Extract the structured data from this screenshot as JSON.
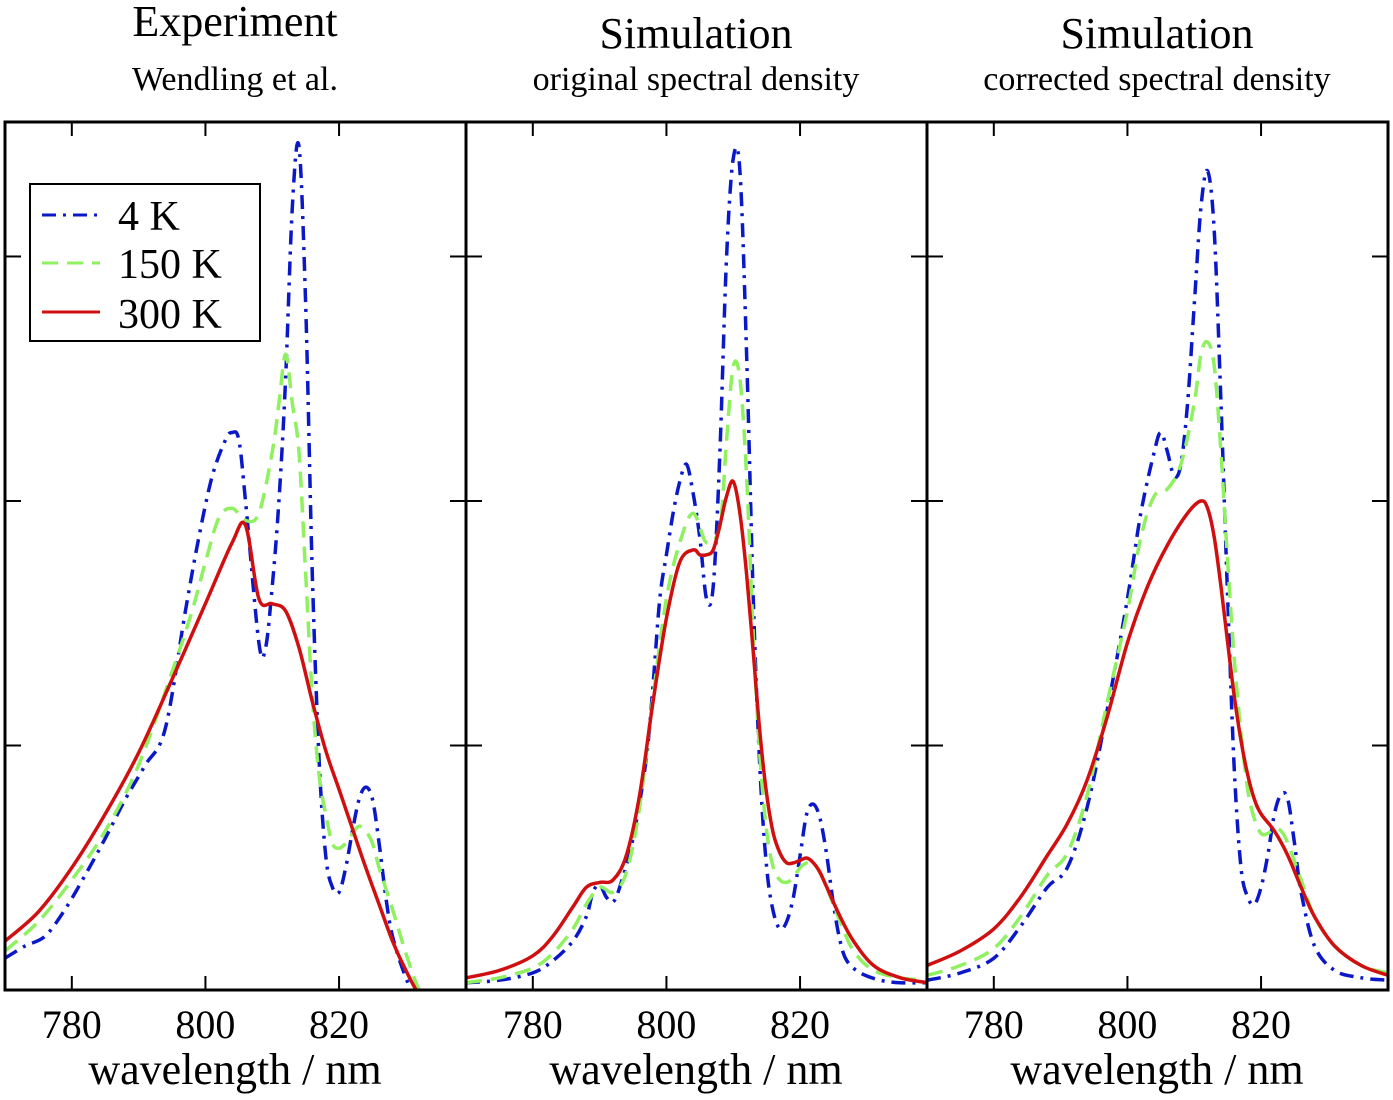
{
  "chart_data": [
    {
      "type": "line",
      "title": "Experiment",
      "subtitle": "Wendling et al.",
      "xlabel": "wavelength / nm",
      "ylabel": "",
      "xlim": [
        770,
        839
      ],
      "ylim": [
        0,
        3.55
      ],
      "xticks": [
        780,
        800,
        820
      ],
      "yticks_unlabeled": [
        1,
        2,
        3
      ],
      "legend": "top-left",
      "series": [
        {
          "name": "4 K",
          "color": "#0a18c8",
          "style": "dashdot",
          "x": [
            770,
            773,
            776,
            779,
            782,
            785,
            788,
            791,
            794,
            797,
            799,
            801,
            803,
            804,
            805,
            806,
            808,
            809,
            810,
            811,
            812,
            813,
            814,
            815,
            816,
            817,
            818,
            819,
            820,
            821,
            822,
            823,
            824,
            825,
            826,
            827,
            828,
            830,
            832,
            834,
            836,
            839
          ],
          "y": [
            0.13,
            0.18,
            0.22,
            0.33,
            0.47,
            0.62,
            0.78,
            0.92,
            1.07,
            1.55,
            1.85,
            2.1,
            2.25,
            2.28,
            2.25,
            2.0,
            1.42,
            1.4,
            1.65,
            2.0,
            2.5,
            3.2,
            3.45,
            2.8,
            1.7,
            0.95,
            0.55,
            0.42,
            0.4,
            0.5,
            0.65,
            0.78,
            0.83,
            0.78,
            0.6,
            0.38,
            0.22,
            0.05,
            -0.06,
            -0.1,
            -0.12,
            -0.14
          ]
        },
        {
          "name": "150 K",
          "color": "#8ff060",
          "style": "dashed",
          "x": [
            770,
            775,
            780,
            785,
            790,
            795,
            798,
            800,
            802,
            804,
            806,
            808,
            810,
            811,
            812,
            813,
            814,
            815,
            816,
            817,
            818,
            819,
            820,
            821,
            822,
            823,
            824,
            825,
            826,
            828,
            830,
            832,
            834,
            836,
            839
          ],
          "y": [
            0.16,
            0.28,
            0.45,
            0.65,
            0.92,
            1.3,
            1.55,
            1.75,
            1.93,
            1.97,
            1.92,
            1.95,
            2.2,
            2.4,
            2.6,
            2.4,
            2.2,
            1.7,
            1.2,
            0.88,
            0.72,
            0.6,
            0.58,
            0.6,
            0.64,
            0.67,
            0.65,
            0.6,
            0.5,
            0.33,
            0.15,
            0.0,
            -0.07,
            -0.11,
            -0.14
          ]
        },
        {
          "name": "300 K",
          "color": "#d01010",
          "style": "solid",
          "x": [
            770,
            775,
            780,
            785,
            790,
            795,
            800,
            804,
            806,
            808,
            810,
            812,
            814,
            816,
            818,
            820,
            822,
            824,
            826,
            828,
            830,
            832,
            834,
            836,
            839
          ],
          "y": [
            0.2,
            0.32,
            0.5,
            0.72,
            0.97,
            1.27,
            1.58,
            1.83,
            1.9,
            1.6,
            1.58,
            1.55,
            1.4,
            1.18,
            0.98,
            0.82,
            0.66,
            0.5,
            0.35,
            0.2,
            0.08,
            -0.02,
            -0.08,
            -0.12,
            -0.15
          ]
        }
      ]
    },
    {
      "type": "line",
      "title": "Simulation",
      "subtitle": "original spectral density",
      "xlabel": "wavelength / nm",
      "ylabel": "",
      "xlim": [
        770,
        839
      ],
      "ylim": [
        0,
        3.55
      ],
      "xticks": [
        780,
        800,
        820
      ],
      "yticks_unlabeled": [
        1,
        2,
        3
      ],
      "series": [
        {
          "name": "4 K",
          "color": "#0a18c8",
          "style": "dashdot",
          "x": [
            770,
            775,
            780,
            783,
            786,
            788,
            789,
            790,
            791,
            792,
            793,
            795,
            797,
            798,
            799,
            800,
            801,
            802,
            803,
            804,
            805,
            806,
            807,
            808,
            809,
            810,
            811,
            812,
            813,
            814,
            815,
            816,
            817,
            818,
            819,
            820,
            821,
            822,
            823,
            824,
            825,
            826,
            827,
            829,
            832,
            835,
            839
          ],
          "y": [
            0.03,
            0.04,
            0.07,
            0.12,
            0.2,
            0.3,
            0.4,
            0.43,
            0.38,
            0.36,
            0.42,
            0.62,
            0.95,
            1.25,
            1.6,
            1.78,
            1.95,
            2.08,
            2.15,
            2.03,
            1.85,
            1.6,
            1.65,
            2.2,
            3.0,
            3.4,
            3.35,
            2.6,
            1.6,
            0.9,
            0.5,
            0.32,
            0.25,
            0.28,
            0.38,
            0.55,
            0.72,
            0.76,
            0.7,
            0.55,
            0.35,
            0.2,
            0.12,
            0.07,
            0.04,
            0.03,
            0.03
          ]
        },
        {
          "name": "150 K",
          "color": "#8ff060",
          "style": "dashed",
          "x": [
            770,
            775,
            780,
            783,
            786,
            788,
            790,
            792,
            794,
            796,
            798,
            800,
            802,
            804,
            806,
            808,
            809,
            810,
            811,
            812,
            813,
            814,
            815,
            816,
            817,
            818,
            819,
            820,
            821,
            822,
            823,
            824,
            826,
            828,
            831,
            835,
            839
          ],
          "y": [
            0.03,
            0.05,
            0.09,
            0.15,
            0.25,
            0.35,
            0.42,
            0.4,
            0.48,
            0.75,
            1.2,
            1.6,
            1.83,
            1.95,
            1.83,
            1.9,
            2.25,
            2.55,
            2.5,
            2.1,
            1.45,
            0.95,
            0.65,
            0.5,
            0.45,
            0.44,
            0.46,
            0.5,
            0.52,
            0.52,
            0.48,
            0.42,
            0.28,
            0.16,
            0.08,
            0.05,
            0.04
          ]
        },
        {
          "name": "300 K",
          "color": "#d01010",
          "style": "solid",
          "x": [
            770,
            775,
            780,
            783,
            786,
            788,
            790,
            792,
            794,
            796,
            798,
            800,
            802,
            804,
            805,
            806,
            807,
            808,
            809,
            810,
            811,
            812,
            813,
            814,
            815,
            816,
            817,
            818,
            819,
            820,
            821,
            822,
            823,
            824,
            826,
            828,
            831,
            835,
            839
          ],
          "y": [
            0.05,
            0.08,
            0.14,
            0.22,
            0.34,
            0.42,
            0.44,
            0.45,
            0.55,
            0.8,
            1.18,
            1.52,
            1.75,
            1.8,
            1.78,
            1.78,
            1.8,
            1.9,
            2.02,
            2.08,
            1.95,
            1.7,
            1.38,
            1.05,
            0.8,
            0.64,
            0.56,
            0.52,
            0.52,
            0.53,
            0.54,
            0.52,
            0.48,
            0.42,
            0.3,
            0.2,
            0.1,
            0.05,
            0.03
          ]
        }
      ]
    },
    {
      "type": "line",
      "title": "Simulation",
      "subtitle": "corrected spectral density",
      "xlabel": "wavelength / nm",
      "ylabel": "",
      "xlim": [
        770,
        839
      ],
      "ylim": [
        0,
        3.55
      ],
      "xticks": [
        780,
        800,
        820
      ],
      "yticks_unlabeled": [
        1,
        2,
        3
      ],
      "series": [
        {
          "name": "4 K",
          "color": "#0a18c8",
          "style": "dashdot",
          "x": [
            770,
            775,
            780,
            784,
            788,
            791,
            794,
            797,
            800,
            802,
            804,
            805,
            806,
            807,
            808,
            809,
            810,
            811,
            812,
            813,
            814,
            815,
            816,
            817,
            818,
            819,
            820,
            821,
            822,
            823,
            824,
            825,
            826,
            828,
            831,
            835,
            839
          ],
          "y": [
            0.04,
            0.07,
            0.13,
            0.26,
            0.42,
            0.5,
            0.75,
            1.15,
            1.6,
            1.95,
            2.2,
            2.28,
            2.2,
            2.1,
            2.15,
            2.4,
            2.8,
            3.2,
            3.35,
            3.1,
            2.4,
            1.6,
            0.9,
            0.5,
            0.38,
            0.35,
            0.42,
            0.55,
            0.72,
            0.8,
            0.78,
            0.6,
            0.4,
            0.18,
            0.08,
            0.05,
            0.04
          ]
        },
        {
          "name": "150 K",
          "color": "#8ff060",
          "style": "dashed",
          "x": [
            770,
            775,
            780,
            784,
            788,
            791,
            794,
            797,
            800,
            802,
            804,
            806,
            808,
            810,
            811,
            812,
            813,
            814,
            815,
            816,
            817,
            818,
            819,
            820,
            821,
            822,
            823,
            824,
            826,
            828,
            831,
            835,
            839
          ],
          "y": [
            0.06,
            0.1,
            0.17,
            0.3,
            0.47,
            0.56,
            0.8,
            1.18,
            1.55,
            1.85,
            2.02,
            2.05,
            2.15,
            2.4,
            2.6,
            2.65,
            2.55,
            2.2,
            1.75,
            1.35,
            1.05,
            0.82,
            0.7,
            0.64,
            0.64,
            0.66,
            0.65,
            0.6,
            0.45,
            0.3,
            0.18,
            0.1,
            0.07
          ]
        },
        {
          "name": "300 K",
          "color": "#d01010",
          "style": "solid",
          "x": [
            770,
            775,
            780,
            784,
            788,
            791,
            794,
            797,
            800,
            803,
            806,
            809,
            811,
            812,
            813,
            814,
            815,
            816,
            817,
            818,
            819,
            820,
            822,
            824,
            826,
            828,
            831,
            835,
            839
          ],
          "y": [
            0.1,
            0.16,
            0.25,
            0.38,
            0.55,
            0.68,
            0.86,
            1.12,
            1.42,
            1.65,
            1.82,
            1.95,
            2.0,
            1.97,
            1.85,
            1.65,
            1.42,
            1.2,
            1.02,
            0.88,
            0.78,
            0.72,
            0.65,
            0.55,
            0.42,
            0.3,
            0.18,
            0.1,
            0.06
          ]
        }
      ]
    }
  ]
}
